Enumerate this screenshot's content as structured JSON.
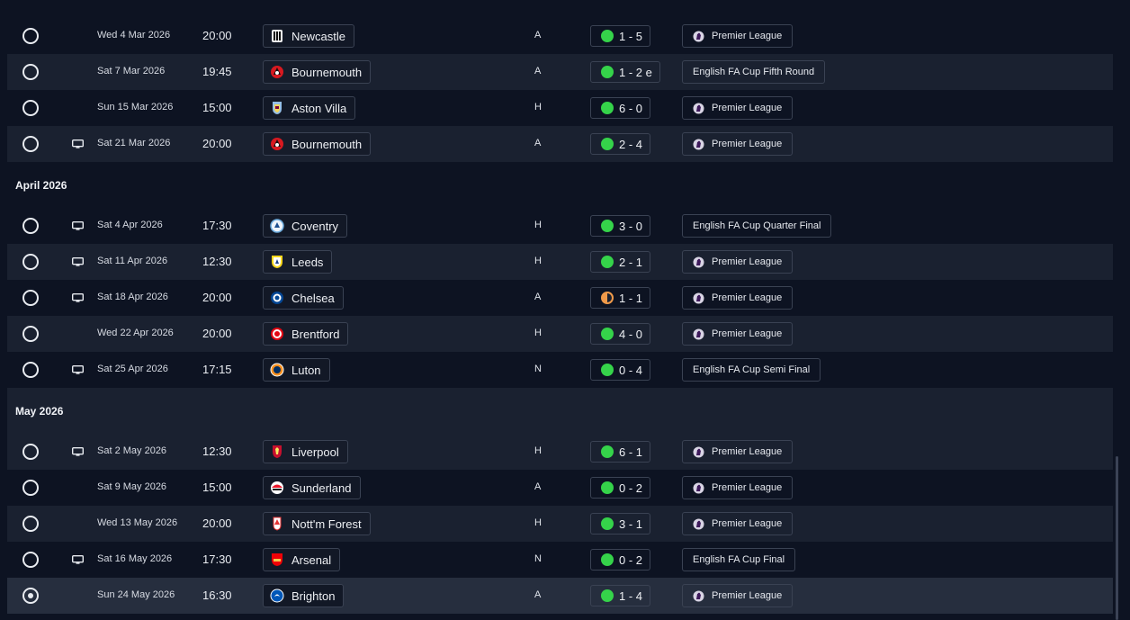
{
  "fixtures": [
    {
      "type": "match",
      "date": "Wed 4 Mar 2026",
      "time": "20:00",
      "team": "Newcastle",
      "crest": "newcastle",
      "venue": "A",
      "score": "1 - 5",
      "outcome": "win",
      "competition": "Premier League",
      "pl_logo": true,
      "tv": false,
      "selected": false,
      "alt": false
    },
    {
      "type": "match",
      "date": "Sat 7 Mar 2026",
      "time": "19:45",
      "team": "Bournemouth",
      "crest": "bournemouth",
      "venue": "A",
      "score": "1 - 2 e",
      "outcome": "win",
      "competition": "English FA Cup Fifth Round",
      "pl_logo": false,
      "tv": false,
      "selected": false,
      "alt": true
    },
    {
      "type": "match",
      "date": "Sun 15 Mar 2026",
      "time": "15:00",
      "team": "Aston Villa",
      "crest": "aston-villa",
      "venue": "H",
      "score": "6 - 0",
      "outcome": "win",
      "competition": "Premier League",
      "pl_logo": true,
      "tv": false,
      "selected": false,
      "alt": false
    },
    {
      "type": "match",
      "date": "Sat 21 Mar 2026",
      "time": "20:00",
      "team": "Bournemouth",
      "crest": "bournemouth",
      "venue": "A",
      "score": "2 - 4",
      "outcome": "win",
      "competition": "Premier League",
      "pl_logo": true,
      "tv": true,
      "selected": false,
      "alt": true
    },
    {
      "type": "month",
      "label": "April 2026",
      "alt": false
    },
    {
      "type": "match",
      "date": "Sat 4 Apr 2026",
      "time": "17:30",
      "team": "Coventry",
      "crest": "coventry",
      "venue": "H",
      "score": "3 - 0",
      "outcome": "win",
      "competition": "English FA Cup Quarter Final",
      "pl_logo": false,
      "tv": true,
      "selected": false,
      "alt": false
    },
    {
      "type": "match",
      "date": "Sat 11 Apr 2026",
      "time": "12:30",
      "team": "Leeds",
      "crest": "leeds",
      "venue": "H",
      "score": "2 - 1",
      "outcome": "win",
      "competition": "Premier League",
      "pl_logo": true,
      "tv": true,
      "selected": false,
      "alt": true
    },
    {
      "type": "match",
      "date": "Sat 18 Apr 2026",
      "time": "20:00",
      "team": "Chelsea",
      "crest": "chelsea",
      "venue": "A",
      "score": "1 - 1",
      "outcome": "draw",
      "competition": "Premier League",
      "pl_logo": true,
      "tv": true,
      "selected": false,
      "alt": false
    },
    {
      "type": "match",
      "date": "Wed 22 Apr 2026",
      "time": "20:00",
      "team": "Brentford",
      "crest": "brentford",
      "venue": "H",
      "score": "4 - 0",
      "outcome": "win",
      "competition": "Premier League",
      "pl_logo": true,
      "tv": false,
      "selected": false,
      "alt": true
    },
    {
      "type": "match",
      "date": "Sat 25 Apr 2026",
      "time": "17:15",
      "team": "Luton",
      "crest": "luton",
      "venue": "N",
      "score": "0 - 4",
      "outcome": "win",
      "competition": "English FA Cup Semi Final",
      "pl_logo": false,
      "tv": true,
      "selected": false,
      "alt": false
    },
    {
      "type": "month",
      "label": "May 2026",
      "alt": true
    },
    {
      "type": "match",
      "date": "Sat 2 May 2026",
      "time": "12:30",
      "team": "Liverpool",
      "crest": "liverpool",
      "venue": "H",
      "score": "6 - 1",
      "outcome": "win",
      "competition": "Premier League",
      "pl_logo": true,
      "tv": true,
      "selected": false,
      "alt": true
    },
    {
      "type": "match",
      "date": "Sat 9 May 2026",
      "time": "15:00",
      "team": "Sunderland",
      "crest": "sunderland",
      "venue": "A",
      "score": "0 - 2",
      "outcome": "win",
      "competition": "Premier League",
      "pl_logo": true,
      "tv": false,
      "selected": false,
      "alt": false
    },
    {
      "type": "match",
      "date": "Wed 13 May 2026",
      "time": "20:00",
      "team": "Nott'm Forest",
      "crest": "forest",
      "venue": "H",
      "score": "3 - 1",
      "outcome": "win",
      "competition": "Premier League",
      "pl_logo": true,
      "tv": false,
      "selected": false,
      "alt": true
    },
    {
      "type": "match",
      "date": "Sat 16 May 2026",
      "time": "17:30",
      "team": "Arsenal",
      "crest": "arsenal",
      "venue": "N",
      "score": "0 - 2",
      "outcome": "win",
      "competition": "English FA Cup Final",
      "pl_logo": false,
      "tv": true,
      "selected": false,
      "alt": false
    },
    {
      "type": "match",
      "date": "Sun 24 May 2026",
      "time": "16:30",
      "team": "Brighton",
      "crest": "brighton",
      "venue": "A",
      "score": "1 - 4",
      "outcome": "win",
      "competition": "Premier League",
      "pl_logo": true,
      "tv": false,
      "selected": true,
      "alt": false
    }
  ],
  "colors": {
    "background": "#0d1322",
    "row_alt": "#1a2130",
    "win": "#35d34a",
    "draw": "#f09a4a"
  }
}
